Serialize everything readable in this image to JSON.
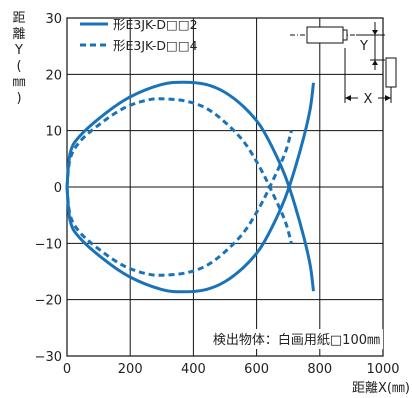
{
  "chart_data": {
    "type": "line",
    "xlim": [
      0,
      1000
    ],
    "ylim": [
      -30,
      30
    ],
    "x_ticks": [
      "0",
      "200",
      "400",
      "600",
      "800",
      "1000"
    ],
    "y_ticks": [
      "30",
      "20",
      "10",
      "0",
      "−10",
      "−20",
      "−30"
    ],
    "xlabel": "距離X(㎜)",
    "ylabel": "距離Y(㎜)",
    "grid": true,
    "legend_placement": "top-left",
    "note": "検出物体：白画用紙□100㎜",
    "colors": {
      "series": "#1a73b8",
      "grid": "#111111"
    },
    "series": [
      {
        "name": "形E3JK-D□□2",
        "style": "solid",
        "upper": [
          [
            0,
            0
          ],
          [
            10,
            6
          ],
          [
            40,
            9
          ],
          [
            120,
            13
          ],
          [
            200,
            16
          ],
          [
            300,
            18.2
          ],
          [
            370,
            18.6
          ],
          [
            440,
            18.2
          ],
          [
            500,
            16.8
          ],
          [
            560,
            14.2
          ],
          [
            610,
            11
          ],
          [
            650,
            7
          ],
          [
            690,
            2
          ],
          [
            720,
            -3
          ],
          [
            750,
            -9
          ],
          [
            770,
            -14
          ],
          [
            780,
            -18.5
          ]
        ],
        "lower": [
          [
            0,
            0
          ],
          [
            10,
            -6
          ],
          [
            40,
            -9
          ],
          [
            120,
            -13
          ],
          [
            200,
            -16
          ],
          [
            300,
            -18.2
          ],
          [
            370,
            -18.6
          ],
          [
            440,
            -18.2
          ],
          [
            500,
            -16.8
          ],
          [
            560,
            -14.2
          ],
          [
            610,
            -11
          ],
          [
            650,
            -7
          ],
          [
            690,
            -2
          ],
          [
            720,
            3
          ],
          [
            750,
            9
          ],
          [
            770,
            14
          ],
          [
            780,
            18.5
          ]
        ]
      },
      {
        "name": "形E3JK-D□□4",
        "style": "dashed",
        "upper": [
          [
            0,
            0
          ],
          [
            10,
            5
          ],
          [
            40,
            8
          ],
          [
            100,
            11
          ],
          [
            180,
            14
          ],
          [
            260,
            15.5
          ],
          [
            320,
            15.6
          ],
          [
            380,
            15.2
          ],
          [
            440,
            14
          ],
          [
            500,
            11.5
          ],
          [
            560,
            8
          ],
          [
            610,
            3.5
          ],
          [
            650,
            -1
          ],
          [
            690,
            -6
          ],
          [
            710,
            -10
          ]
        ],
        "lower": [
          [
            0,
            0
          ],
          [
            10,
            -5
          ],
          [
            40,
            -8
          ],
          [
            100,
            -11
          ],
          [
            180,
            -14
          ],
          [
            260,
            -15.5
          ],
          [
            320,
            -15.6
          ],
          [
            380,
            -15.2
          ],
          [
            440,
            -14
          ],
          [
            500,
            -11.5
          ],
          [
            560,
            -8
          ],
          [
            610,
            -3.5
          ],
          [
            650,
            1
          ],
          [
            690,
            6
          ],
          [
            710,
            10
          ]
        ]
      }
    ],
    "inset_labels": {
      "y": "Y",
      "x": "X"
    }
  }
}
